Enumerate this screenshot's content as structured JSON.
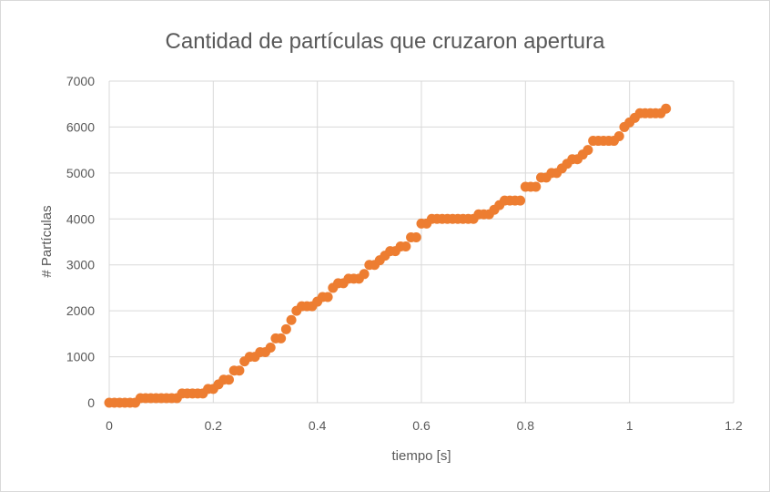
{
  "chart_data": {
    "type": "scatter",
    "title": "Cantidad de partículas que cruzaron apertura",
    "xlabel": "tiempo [s]",
    "ylabel": "# Partículas",
    "xlim": [
      0,
      1.2
    ],
    "ylim": [
      0,
      7000
    ],
    "xticks": [
      "0",
      "0.2",
      "0.4",
      "0.6",
      "0.8",
      "1",
      "1.2"
    ],
    "yticks": [
      "0",
      "1000",
      "2000",
      "3000",
      "4000",
      "5000",
      "6000",
      "7000"
    ],
    "grid": true,
    "marker_color": "#ed7d31",
    "series": [
      {
        "name": "Partículas",
        "x": [
          0.0,
          0.01,
          0.02,
          0.03,
          0.04,
          0.05,
          0.06,
          0.07,
          0.08,
          0.09,
          0.1,
          0.11,
          0.12,
          0.13,
          0.14,
          0.15,
          0.16,
          0.17,
          0.18,
          0.19,
          0.2,
          0.21,
          0.22,
          0.23,
          0.24,
          0.25,
          0.26,
          0.27,
          0.28,
          0.29,
          0.3,
          0.31,
          0.32,
          0.33,
          0.34,
          0.35,
          0.36,
          0.37,
          0.38,
          0.39,
          0.4,
          0.41,
          0.42,
          0.43,
          0.44,
          0.45,
          0.46,
          0.47,
          0.48,
          0.49,
          0.5,
          0.51,
          0.52,
          0.53,
          0.54,
          0.55,
          0.56,
          0.57,
          0.58,
          0.59,
          0.6,
          0.61,
          0.62,
          0.63,
          0.64,
          0.65,
          0.66,
          0.67,
          0.68,
          0.69,
          0.7,
          0.71,
          0.72,
          0.73,
          0.74,
          0.75,
          0.76,
          0.77,
          0.78,
          0.79,
          0.8,
          0.81,
          0.82,
          0.83,
          0.84,
          0.85,
          0.86,
          0.87,
          0.88,
          0.89,
          0.9,
          0.91,
          0.92,
          0.93,
          0.94,
          0.95,
          0.96,
          0.97,
          0.98,
          0.99,
          1.0,
          1.01,
          1.02,
          1.03,
          1.04,
          1.05,
          1.06,
          1.07
        ],
        "y": [
          0,
          0,
          0,
          0,
          0,
          0,
          100,
          100,
          100,
          100,
          100,
          100,
          100,
          100,
          200,
          200,
          200,
          200,
          200,
          300,
          300,
          400,
          500,
          500,
          700,
          700,
          900,
          1000,
          1000,
          1100,
          1100,
          1200,
          1400,
          1400,
          1600,
          1800,
          2000,
          2100,
          2100,
          2100,
          2200,
          2300,
          2300,
          2500,
          2600,
          2600,
          2700,
          2700,
          2700,
          2800,
          3000,
          3000,
          3100,
          3200,
          3300,
          3300,
          3400,
          3400,
          3600,
          3600,
          3900,
          3900,
          4000,
          4000,
          4000,
          4000,
          4000,
          4000,
          4000,
          4000,
          4000,
          4100,
          4100,
          4100,
          4200,
          4300,
          4400,
          4400,
          4400,
          4400,
          4700,
          4700,
          4700,
          4900,
          4900,
          5000,
          5000,
          5100,
          5200,
          5300,
          5300,
          5400,
          5500,
          5700,
          5700,
          5700,
          5700,
          5700,
          5800,
          6000,
          6100,
          6200,
          6300,
          6300,
          6300,
          6300,
          6300,
          6400
        ]
      }
    ]
  }
}
